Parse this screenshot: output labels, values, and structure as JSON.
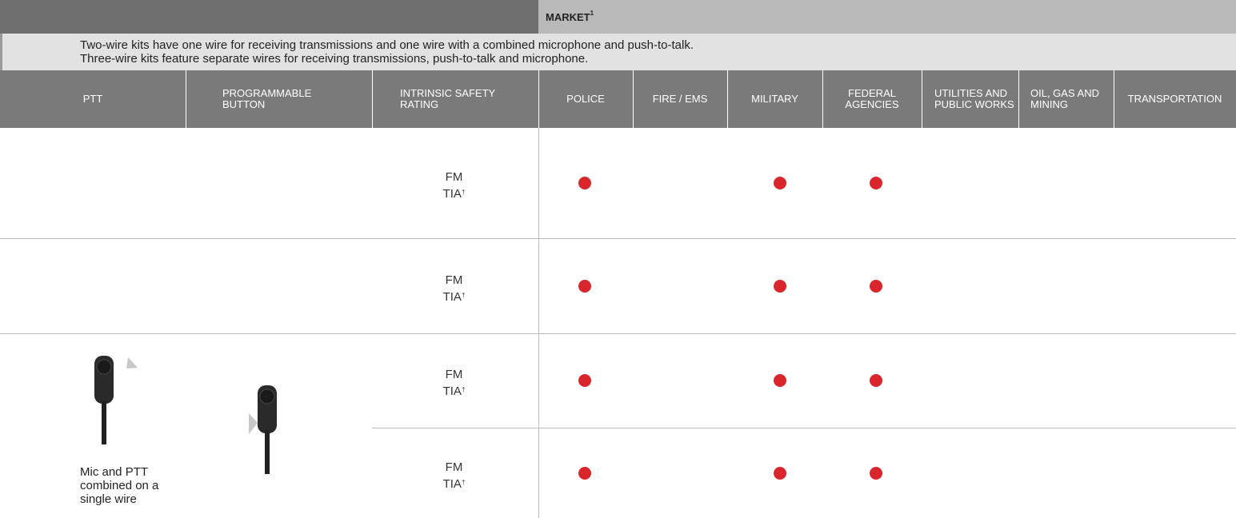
{
  "header": {
    "market": "MARKET",
    "market_note": "1"
  },
  "description": [
    "Two-wire kits have one wire for receiving transmissions and one wire with a combined microphone and push-to-talk.",
    "Three-wire kits feature separate wires for receiving transmissions, push-to-talk and microphone."
  ],
  "columns": [
    "PTT",
    "PROGRAMMABLE BUTTON",
    "INTRINSIC SAFETY RATING",
    "POLICE",
    "FIRE / EMS",
    "MILITARY",
    "FEDERAL AGENCIES",
    "UTILITIES AND PUBLIC WORKS",
    "OIL, GAS AND MINING",
    "TRANSPORTATION"
  ],
  "rows": [
    {
      "rating": [
        "FM",
        "TIA",
        "†"
      ],
      "markets": [
        true,
        false,
        true,
        true,
        false,
        false,
        false
      ]
    },
    {
      "rating": [
        "FM",
        "TIA",
        "†"
      ],
      "markets": [
        true,
        false,
        true,
        true,
        false,
        false,
        false
      ]
    },
    {
      "rating": [
        "FM",
        "TIA",
        "†"
      ],
      "markets": [
        true,
        false,
        true,
        true,
        false,
        false,
        false
      ]
    },
    {
      "rating": [
        "FM",
        "TIA",
        "†"
      ],
      "markets": [
        true,
        false,
        true,
        true,
        false,
        false,
        false
      ]
    }
  ],
  "ptt_note": [
    "Mic and PTT",
    "combined on a",
    "single wire"
  ]
}
